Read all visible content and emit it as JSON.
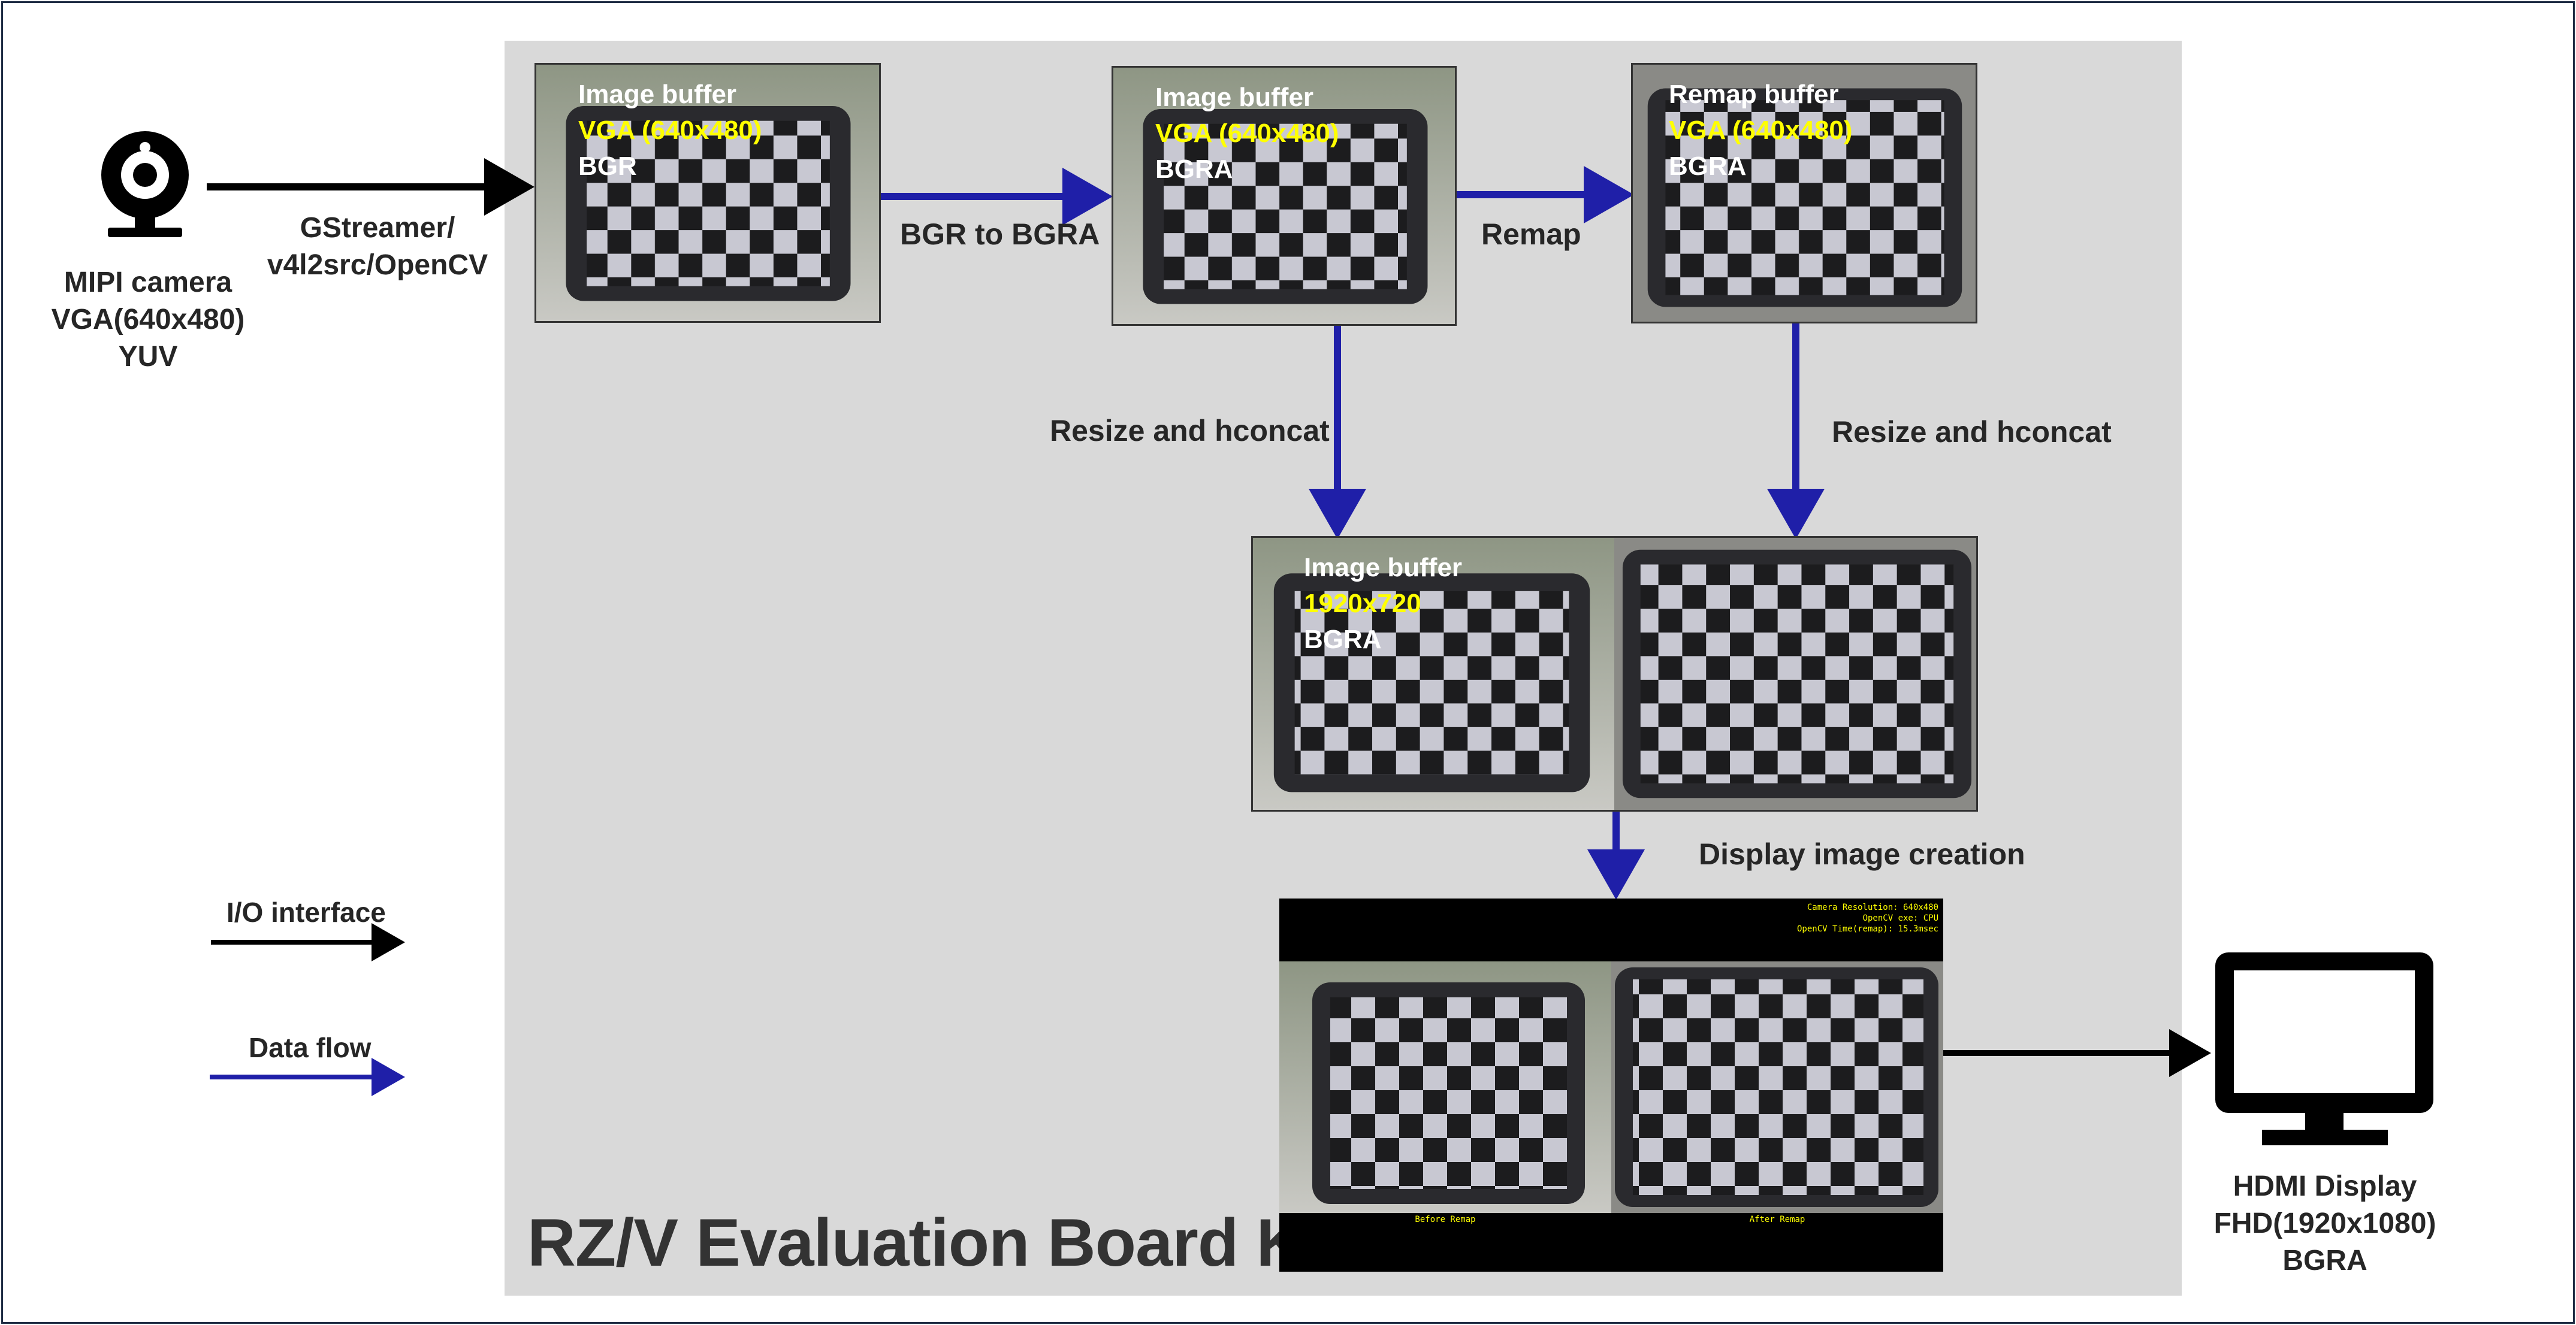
{
  "board": {
    "title": "RZ/V Evaluation Board Kit"
  },
  "camera": {
    "lines": [
      "MIPI camera",
      "VGA(640x480)",
      "YUV"
    ],
    "icon": "webcam-icon"
  },
  "io_label": {
    "lines": [
      "GStreamer/",
      "v4l2src/OpenCV"
    ]
  },
  "buffers": {
    "b1": {
      "title": "Image buffer",
      "size": "VGA (640x480)",
      "format": "BGR"
    },
    "b2": {
      "title": "Image buffer",
      "size": "VGA (640x480)",
      "format": "BGRA"
    },
    "b3": {
      "title": "Remap buffer",
      "size": "VGA (640x480)",
      "format": "BGRA"
    },
    "b4": {
      "title": "Image buffer",
      "size": "1920x720",
      "format": "BGRA"
    }
  },
  "steps": {
    "bgr_to_bgra": "BGR to BGRA",
    "remap": "Remap",
    "resize_left": "Resize and hconcat",
    "resize_right": "Resize and hconcat",
    "display_creation": "Display image creation"
  },
  "display_preview": {
    "info_lines": [
      "Camera Resolution: 640x480",
      "OpenCV exe: CPU",
      "OpenCV Time(remap): 15.3msec"
    ],
    "caption_left": "Before Remap",
    "caption_right": "After Remap"
  },
  "hdmi": {
    "lines": [
      "HDMI Display",
      "FHD(1920x1080)",
      "BGRA"
    ],
    "icon": "monitor-icon"
  },
  "legend": {
    "io": "I/O interface",
    "data": "Data flow"
  },
  "colors": {
    "io_arrow": "#000000",
    "data_arrow": "#1f1fa8",
    "board_bg": "#d9d9d9",
    "highlight": "#ffff00"
  }
}
